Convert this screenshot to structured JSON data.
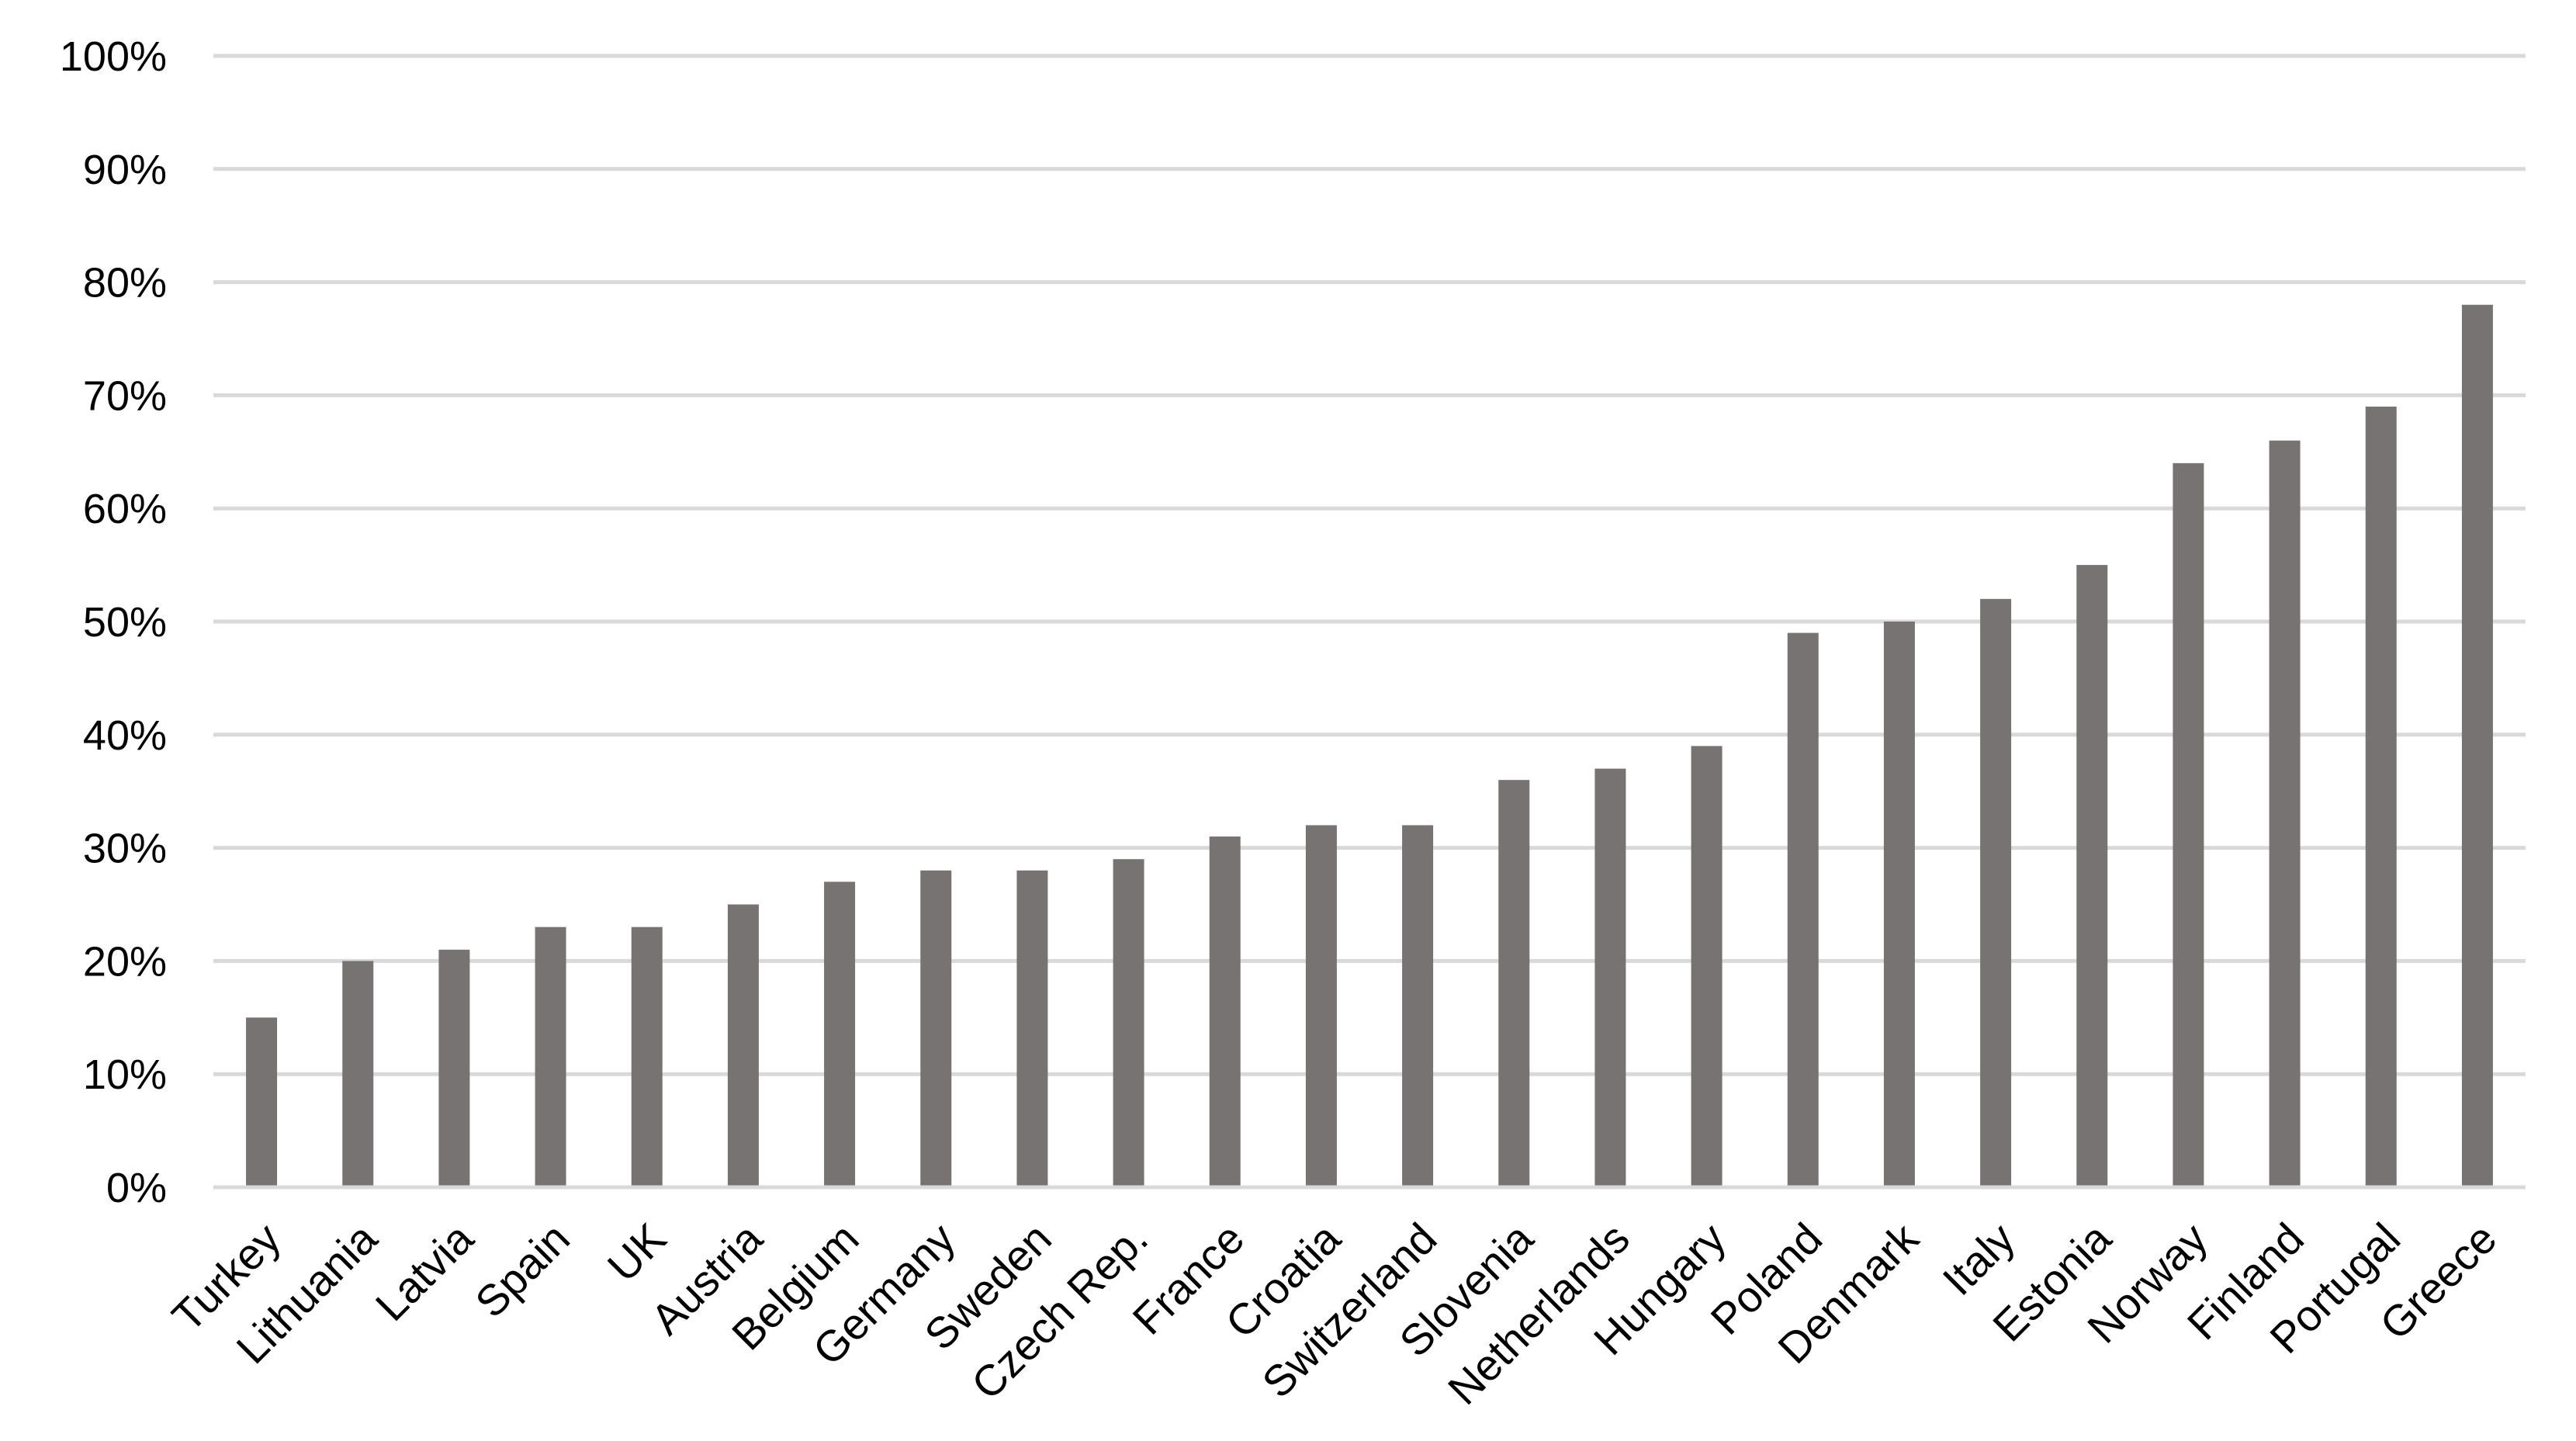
{
  "chart_data": {
    "type": "bar",
    "title": "",
    "xlabel": "",
    "ylabel": "",
    "ylim": [
      0,
      100
    ],
    "y_ticks": [
      "0%",
      "10%",
      "20%",
      "30%",
      "40%",
      "50%",
      "60%",
      "70%",
      "80%",
      "90%",
      "100%"
    ],
    "grid": true,
    "legend": "none",
    "bar_color": "#787373",
    "grid_color": "#d9d9d9",
    "categories": [
      "Turkey",
      "Lithuania",
      "Latvia",
      "Spain",
      "UK",
      "Austria",
      "Belgium",
      "Germany",
      "Sweden",
      "Czech Rep.",
      "France",
      "Croatia",
      "Switzerland",
      "Slovenia",
      "Netherlands",
      "Hungary",
      "Poland",
      "Denmark",
      "Italy",
      "Estonia",
      "Norway",
      "Finland",
      "Portugal",
      "Greece"
    ],
    "values": [
      15,
      20,
      21,
      23,
      23,
      25,
      27,
      28,
      28,
      29,
      31,
      32,
      32,
      36,
      37,
      39,
      49,
      50,
      52,
      55,
      64,
      66,
      69,
      78
    ]
  }
}
